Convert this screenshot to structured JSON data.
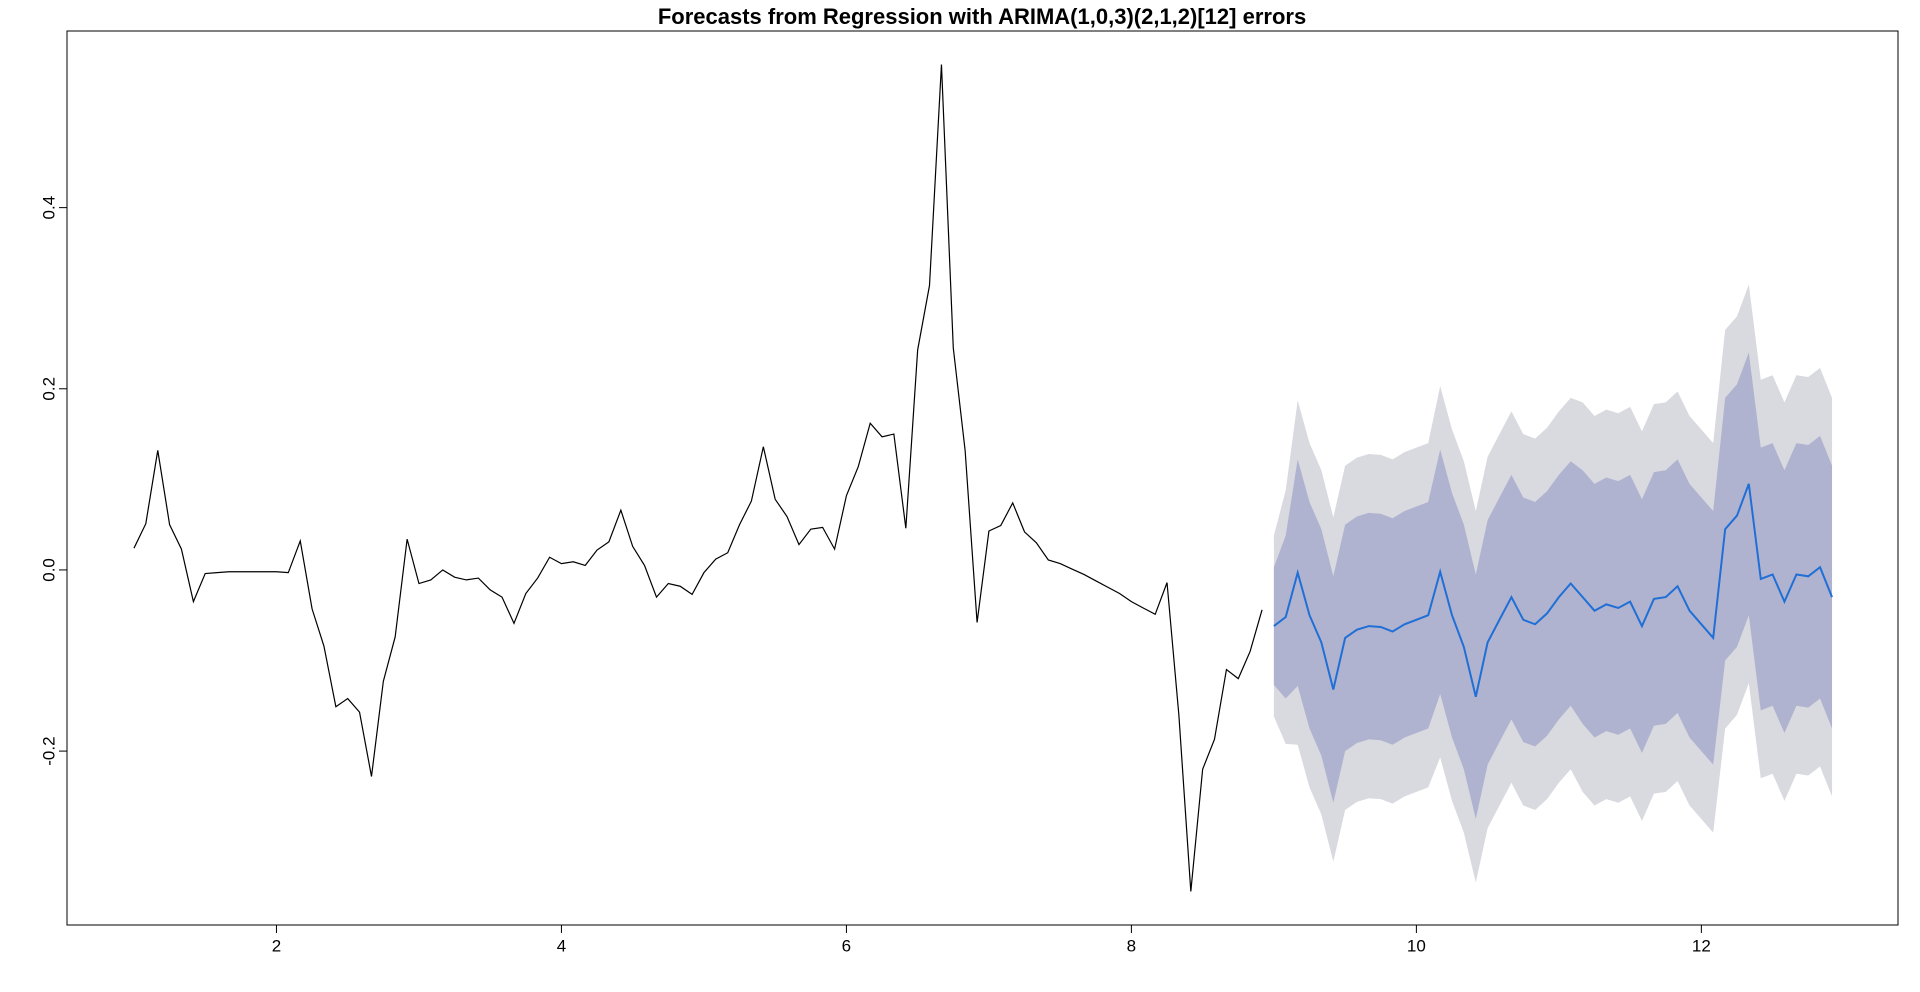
{
  "chart_data": {
    "type": "line",
    "title": "Forecasts from Regression with ARIMA(1,0,3)(2,1,2)[12] errors",
    "x": [
      1,
      1.083,
      1.167,
      1.25,
      1.333,
      1.417,
      1.5,
      1.583,
      1.667,
      1.75,
      1.833,
      1.917,
      2,
      2.083,
      2.167,
      2.25,
      2.333,
      2.417,
      2.5,
      2.583,
      2.667,
      2.75,
      2.833,
      2.917,
      3,
      3.083,
      3.167,
      3.25,
      3.333,
      3.417,
      3.5,
      3.583,
      3.667,
      3.75,
      3.833,
      3.917,
      4,
      4.083,
      4.167,
      4.25,
      4.333,
      4.417,
      4.5,
      4.583,
      4.667,
      4.75,
      4.833,
      4.917,
      5,
      5.083,
      5.167,
      5.25,
      5.333,
      5.417,
      5.5,
      5.583,
      5.667,
      5.75,
      5.833,
      5.917,
      6,
      6.083,
      6.167,
      6.25,
      6.333,
      6.417,
      6.5,
      6.583,
      6.667,
      6.75,
      6.833,
      6.917,
      7,
      7.083,
      7.167,
      7.25,
      7.333,
      7.417,
      7.5,
      7.583,
      7.667,
      7.75,
      7.833,
      7.917,
      8,
      8.083,
      8.167,
      8.25,
      8.333,
      8.417,
      8.5,
      8.583,
      8.667,
      8.75,
      8.833,
      8.917,
      9,
      9.083,
      9.167,
      9.25,
      9.333,
      9.417,
      9.5,
      9.583,
      9.667,
      9.75,
      9.833,
      9.917,
      10,
      10.083,
      10.167,
      10.25,
      10.333,
      10.417,
      10.5,
      10.583,
      10.667,
      10.75,
      10.833,
      10.917,
      11,
      11.083,
      11.167,
      11.25,
      11.333,
      11.417,
      11.5,
      11.583,
      11.667,
      11.75,
      11.833,
      11.917,
      12,
      12.083,
      12.167,
      12.25,
      12.333,
      12.417,
      12.5,
      12.583,
      12.667,
      12.75,
      12.833,
      12.917
    ],
    "xlim": [
      0.53,
      13.38
    ],
    "xticks": [
      2,
      4,
      6,
      8,
      10,
      12
    ],
    "ylim": [
      -0.392,
      0.595
    ],
    "yticks": [
      -0.2,
      {
        "value": 0,
        "label": "0.0"
      },
      0.2,
      0.4
    ],
    "bands": [
      {
        "color": "#d9d9e0",
        "lower": [
          null,
          null,
          null,
          null,
          null,
          null,
          null,
          null,
          null,
          null,
          null,
          null,
          null,
          null,
          null,
          null,
          null,
          null,
          null,
          null,
          null,
          null,
          null,
          null,
          null,
          null,
          null,
          null,
          null,
          null,
          null,
          null,
          null,
          null,
          null,
          null,
          null,
          null,
          null,
          null,
          null,
          null,
          null,
          null,
          null,
          null,
          null,
          null,
          null,
          null,
          null,
          null,
          null,
          null,
          null,
          null,
          null,
          null,
          null,
          null,
          null,
          null,
          null,
          null,
          null,
          null,
          null,
          null,
          null,
          null,
          null,
          null,
          null,
          null,
          null,
          null,
          null,
          null,
          null,
          null,
          null,
          null,
          null,
          null,
          null,
          null,
          null,
          null,
          null,
          null,
          null,
          null,
          null,
          null,
          null,
          null,
          -0.162,
          -0.192,
          -0.193,
          -0.24,
          -0.27,
          -0.322,
          -0.265,
          -0.256,
          -0.252,
          -0.253,
          -0.258,
          -0.25,
          -0.245,
          -0.24,
          -0.207,
          -0.255,
          -0.29,
          -0.345,
          -0.285,
          -0.26,
          -0.235,
          -0.26,
          -0.265,
          -0.253,
          -0.235,
          -0.22,
          -0.245,
          -0.26,
          -0.253,
          -0.257,
          -0.25,
          -0.277,
          -0.247,
          -0.245,
          -0.233,
          -0.26,
          -0.275,
          -0.29,
          -0.175,
          -0.16,
          -0.125,
          -0.23,
          -0.225,
          -0.255,
          -0.225,
          -0.227,
          -0.217,
          -0.25
        ],
        "upper": [
          null,
          null,
          null,
          null,
          null,
          null,
          null,
          null,
          null,
          null,
          null,
          null,
          null,
          null,
          null,
          null,
          null,
          null,
          null,
          null,
          null,
          null,
          null,
          null,
          null,
          null,
          null,
          null,
          null,
          null,
          null,
          null,
          null,
          null,
          null,
          null,
          null,
          null,
          null,
          null,
          null,
          null,
          null,
          null,
          null,
          null,
          null,
          null,
          null,
          null,
          null,
          null,
          null,
          null,
          null,
          null,
          null,
          null,
          null,
          null,
          null,
          null,
          null,
          null,
          null,
          null,
          null,
          null,
          null,
          null,
          null,
          null,
          null,
          null,
          null,
          null,
          null,
          null,
          null,
          null,
          null,
          null,
          null,
          null,
          null,
          null,
          null,
          null,
          null,
          null,
          null,
          null,
          null,
          null,
          null,
          null,
          0.038,
          0.088,
          0.187,
          0.14,
          0.11,
          0.058,
          0.115,
          0.124,
          0.128,
          0.127,
          0.122,
          0.13,
          0.135,
          0.14,
          0.203,
          0.155,
          0.12,
          0.065,
          0.125,
          0.15,
          0.175,
          0.15,
          0.145,
          0.157,
          0.175,
          0.19,
          0.185,
          0.17,
          0.177,
          0.173,
          0.18,
          0.153,
          0.183,
          0.185,
          0.197,
          0.17,
          0.155,
          0.14,
          0.265,
          0.28,
          0.315,
          0.21,
          0.215,
          0.185,
          0.215,
          0.213,
          0.223,
          0.19
        ]
      },
      {
        "color": "#b0b3cf",
        "lower": [
          null,
          null,
          null,
          null,
          null,
          null,
          null,
          null,
          null,
          null,
          null,
          null,
          null,
          null,
          null,
          null,
          null,
          null,
          null,
          null,
          null,
          null,
          null,
          null,
          null,
          null,
          null,
          null,
          null,
          null,
          null,
          null,
          null,
          null,
          null,
          null,
          null,
          null,
          null,
          null,
          null,
          null,
          null,
          null,
          null,
          null,
          null,
          null,
          null,
          null,
          null,
          null,
          null,
          null,
          null,
          null,
          null,
          null,
          null,
          null,
          null,
          null,
          null,
          null,
          null,
          null,
          null,
          null,
          null,
          null,
          null,
          null,
          null,
          null,
          null,
          null,
          null,
          null,
          null,
          null,
          null,
          null,
          null,
          null,
          null,
          null,
          null,
          null,
          null,
          null,
          null,
          null,
          null,
          null,
          null,
          null,
          -0.127,
          -0.142,
          -0.128,
          -0.175,
          -0.205,
          -0.257,
          -0.2,
          -0.191,
          -0.187,
          -0.188,
          -0.193,
          -0.185,
          -0.18,
          -0.175,
          -0.137,
          -0.185,
          -0.22,
          -0.275,
          -0.215,
          -0.19,
          -0.165,
          -0.19,
          -0.195,
          -0.183,
          -0.165,
          -0.15,
          -0.17,
          -0.185,
          -0.178,
          -0.182,
          -0.175,
          -0.202,
          -0.172,
          -0.17,
          -0.158,
          -0.185,
          -0.2,
          -0.215,
          -0.1,
          -0.085,
          -0.05,
          -0.155,
          -0.15,
          -0.18,
          -0.15,
          -0.152,
          -0.142,
          -0.175
        ],
        "upper": [
          null,
          null,
          null,
          null,
          null,
          null,
          null,
          null,
          null,
          null,
          null,
          null,
          null,
          null,
          null,
          null,
          null,
          null,
          null,
          null,
          null,
          null,
          null,
          null,
          null,
          null,
          null,
          null,
          null,
          null,
          null,
          null,
          null,
          null,
          null,
          null,
          null,
          null,
          null,
          null,
          null,
          null,
          null,
          null,
          null,
          null,
          null,
          null,
          null,
          null,
          null,
          null,
          null,
          null,
          null,
          null,
          null,
          null,
          null,
          null,
          null,
          null,
          null,
          null,
          null,
          null,
          null,
          null,
          null,
          null,
          null,
          null,
          null,
          null,
          null,
          null,
          null,
          null,
          null,
          null,
          null,
          null,
          null,
          null,
          null,
          null,
          null,
          null,
          null,
          null,
          null,
          null,
          null,
          null,
          null,
          null,
          0.003,
          0.038,
          0.122,
          0.075,
          0.045,
          -0.007,
          0.05,
          0.059,
          0.063,
          0.062,
          0.057,
          0.065,
          0.07,
          0.075,
          0.133,
          0.085,
          0.05,
          -0.005,
          0.055,
          0.08,
          0.105,
          0.08,
          0.075,
          0.087,
          0.105,
          0.12,
          0.11,
          0.095,
          0.102,
          0.098,
          0.105,
          0.078,
          0.108,
          0.11,
          0.122,
          0.095,
          0.08,
          0.065,
          0.19,
          0.205,
          0.24,
          0.135,
          0.14,
          0.11,
          0.14,
          0.138,
          0.148,
          0.115
        ]
      }
    ],
    "series": [
      {
        "color": "#000000",
        "values": [
          0.024,
          0.051,
          0.132,
          0.05,
          0.023,
          -0.035,
          -0.004,
          -0.003,
          -0.002,
          -0.002,
          -0.002,
          -0.002,
          -0.002,
          -0.003,
          0.032,
          -0.043,
          -0.084,
          -0.151,
          -0.142,
          -0.157,
          -0.228,
          -0.123,
          -0.074,
          0.034,
          -0.015,
          -0.011,
          0.0,
          -0.008,
          -0.011,
          -0.009,
          -0.022,
          -0.03,
          -0.059,
          -0.026,
          -0.009,
          0.014,
          0.007,
          0.009,
          0.005,
          0.022,
          0.031,
          0.066,
          0.026,
          0.005,
          -0.03,
          -0.015,
          -0.018,
          -0.027,
          -0.003,
          0.012,
          0.019,
          0.05,
          0.076,
          0.136,
          0.078,
          0.059,
          0.028,
          0.045,
          0.047,
          0.023,
          0.082,
          0.114,
          0.162,
          0.147,
          0.15,
          0.046,
          0.243,
          0.314,
          0.558,
          0.245,
          0.132,
          -0.058,
          0.043,
          0.049,
          0.074,
          0.042,
          0.03,
          0.011,
          0.007,
          0.001,
          -0.005,
          -0.012,
          -0.019,
          -0.026,
          -0.035,
          -0.042,
          -0.049,
          -0.014,
          -0.16,
          -0.355,
          -0.22,
          -0.187,
          -0.11,
          -0.12,
          -0.09,
          -0.044,
          null,
          null,
          null,
          null,
          null,
          null,
          null,
          null,
          null,
          null,
          null,
          null,
          null,
          null,
          null,
          null,
          null,
          null,
          null,
          null,
          null,
          null,
          null,
          null,
          null,
          null,
          null,
          null,
          null,
          null,
          null,
          null,
          null,
          null,
          null,
          null,
          null,
          null,
          null,
          null,
          null,
          null,
          null,
          null,
          null,
          null,
          null,
          null
        ]
      },
      {
        "color": "#1f6fd6",
        "values": [
          null,
          null,
          null,
          null,
          null,
          null,
          null,
          null,
          null,
          null,
          null,
          null,
          null,
          null,
          null,
          null,
          null,
          null,
          null,
          null,
          null,
          null,
          null,
          null,
          null,
          null,
          null,
          null,
          null,
          null,
          null,
          null,
          null,
          null,
          null,
          null,
          null,
          null,
          null,
          null,
          null,
          null,
          null,
          null,
          null,
          null,
          null,
          null,
          null,
          null,
          null,
          null,
          null,
          null,
          null,
          null,
          null,
          null,
          null,
          null,
          null,
          null,
          null,
          null,
          null,
          null,
          null,
          null,
          null,
          null,
          null,
          null,
          null,
          null,
          null,
          null,
          null,
          null,
          null,
          null,
          null,
          null,
          null,
          null,
          null,
          null,
          null,
          null,
          null,
          null,
          null,
          null,
          null,
          null,
          null,
          null,
          -0.062,
          -0.052,
          -0.003,
          -0.05,
          -0.08,
          -0.132,
          -0.075,
          -0.066,
          -0.062,
          -0.063,
          -0.068,
          -0.06,
          -0.055,
          -0.05,
          -0.002,
          -0.05,
          -0.085,
          -0.14,
          -0.08,
          -0.055,
          -0.03,
          -0.055,
          -0.06,
          -0.048,
          -0.03,
          -0.015,
          -0.03,
          -0.045,
          -0.038,
          -0.042,
          -0.035,
          -0.062,
          -0.032,
          -0.03,
          -0.018,
          -0.045,
          -0.06,
          -0.075,
          0.045,
          0.06,
          0.095,
          -0.01,
          -0.005,
          -0.035,
          -0.005,
          -0.007,
          0.003,
          -0.03
        ]
      }
    ]
  }
}
